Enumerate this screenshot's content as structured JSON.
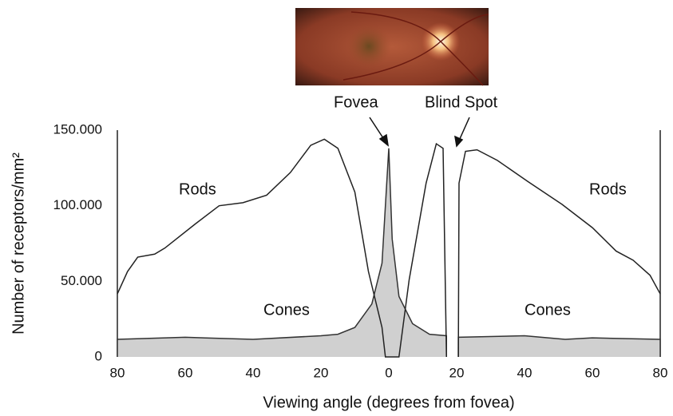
{
  "chart_data": {
    "type": "line",
    "x_label": "Viewing angle (degrees from fovea)",
    "y_label": "Number of receptors/mm²",
    "xlim": [
      -80,
      80
    ],
    "ylim": [
      0,
      150000
    ],
    "xticks": [
      {
        "value": -80,
        "label": "80"
      },
      {
        "value": -60,
        "label": "60"
      },
      {
        "value": -40,
        "label": "40"
      },
      {
        "value": -20,
        "label": "20"
      },
      0,
      20,
      40,
      60,
      80
    ],
    "yticks": [
      0,
      {
        "value": 50000,
        "label": "50.000"
      },
      {
        "value": 100000,
        "label": "100.000"
      },
      {
        "value": 150000,
        "label": "150.000"
      }
    ],
    "series": [
      {
        "name": "Rods",
        "color": "#222222",
        "fill": "none",
        "x": [
          -80,
          -77,
          -74,
          -69,
          -66,
          -57,
          -50,
          -43,
          -36,
          -29,
          -23,
          -19,
          -15,
          -10,
          -6,
          -2,
          -1,
          3,
          6,
          11,
          14,
          16,
          17,
          null,
          20.5,
          20.7,
          22.6,
          26,
          32,
          41,
          51,
          60,
          67,
          72,
          77,
          80
        ],
        "values": [
          41700,
          56500,
          66000,
          68000,
          72000,
          88000,
          100000,
          102000,
          107000,
          122000,
          140000,
          144000,
          138000,
          109000,
          56500,
          19500,
          0,
          0,
          51000,
          115000,
          141000,
          138000,
          0,
          null,
          0,
          115000,
          136000,
          137000,
          130000,
          116000,
          101000,
          85500,
          70000,
          64000,
          54000,
          41700
        ]
      },
      {
        "name": "Cones",
        "color": "#333333",
        "fill": "#d0d0d0",
        "x": [
          -80,
          -60,
          -40,
          -20,
          -15,
          -10,
          -5,
          -2,
          0,
          1,
          3,
          7,
          12,
          17,
          null,
          20.5,
          40,
          52,
          60,
          80
        ],
        "values": [
          11600,
          13000,
          11600,
          14000,
          15000,
          19500,
          35000,
          62000,
          138000,
          78000,
          40000,
          22000,
          15000,
          14000,
          null,
          13000,
          14000,
          11600,
          12600,
          11600
        ]
      }
    ],
    "annotations": [
      "Rods",
      "Rods",
      "Cones",
      "Cones",
      "Fovea",
      "Blind Spot"
    ]
  }
}
